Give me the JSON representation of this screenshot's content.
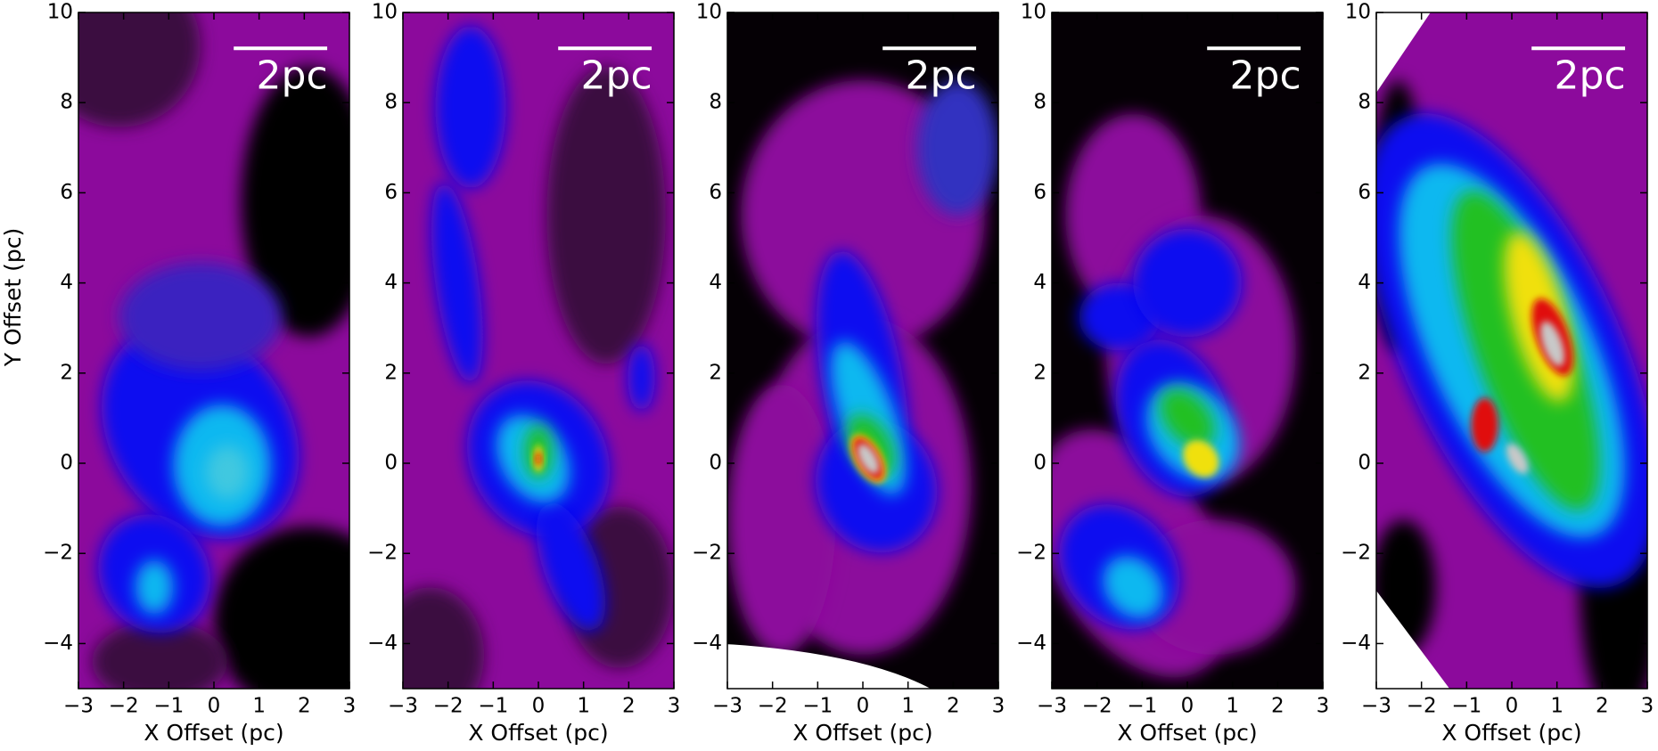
{
  "chart_data": [
    {
      "type": "image",
      "xlabel": "X Offset (pc)",
      "ylabel": "Y Offset (pc)",
      "annotation": "2pc",
      "xlim": [
        -3,
        3
      ],
      "ylim": [
        -5,
        10
      ],
      "xticks": [
        {
          "value": -3,
          "label": "−3"
        },
        {
          "value": -2,
          "label": "−2"
        },
        {
          "value": -1,
          "label": "−1"
        },
        0,
        1,
        2,
        3
      ],
      "yticks": [
        {
          "value": -4,
          "label": "−4"
        },
        {
          "value": -2,
          "label": "−2"
        },
        0,
        2,
        4,
        6,
        8,
        10
      ]
    },
    {
      "type": "image",
      "xlabel": "X Offset (pc)",
      "annotation": "2pc",
      "xlim": [
        -3,
        3
      ],
      "ylim": [
        -5,
        10
      ],
      "xticks": [
        {
          "value": -3,
          "label": "−3"
        },
        {
          "value": -2,
          "label": "−2"
        },
        {
          "value": -1,
          "label": "−1"
        },
        0,
        1,
        2,
        3
      ],
      "yticks": [
        {
          "value": -4,
          "label": "−4"
        },
        {
          "value": -2,
          "label": "−2"
        },
        0,
        2,
        4,
        6,
        8,
        10
      ]
    },
    {
      "type": "image",
      "xlabel": "X Offset (pc)",
      "annotation": "2pc",
      "xlim": [
        -3,
        3
      ],
      "ylim": [
        -5,
        10
      ],
      "xticks": [
        {
          "value": -3,
          "label": "−3"
        },
        {
          "value": -2,
          "label": "−2"
        },
        {
          "value": -1,
          "label": "−1"
        },
        0,
        1,
        2,
        3
      ],
      "yticks": [
        {
          "value": -4,
          "label": "−4"
        },
        {
          "value": -2,
          "label": "−2"
        },
        0,
        2,
        4,
        6,
        8,
        10
      ]
    },
    {
      "type": "image",
      "xlabel": "X Offset (pc)",
      "annotation": "2pc",
      "xlim": [
        -3,
        3
      ],
      "ylim": [
        -5,
        10
      ],
      "xticks": [
        {
          "value": -3,
          "label": "−3"
        },
        {
          "value": -2,
          "label": "−2"
        },
        {
          "value": -1,
          "label": "−1"
        },
        0,
        1,
        2,
        3
      ],
      "yticks": [
        {
          "value": -4,
          "label": "−4"
        },
        {
          "value": -2,
          "label": "−2"
        },
        0,
        2,
        4,
        6,
        8,
        10
      ]
    },
    {
      "type": "image",
      "xlabel": "X Offset (pc)",
      "annotation": "2pc",
      "xlim": [
        -3,
        3
      ],
      "ylim": [
        -5,
        10
      ],
      "xticks": [
        {
          "value": -3,
          "label": "−3"
        },
        {
          "value": -2,
          "label": "−2"
        },
        {
          "value": -1,
          "label": "−1"
        },
        0,
        1,
        2,
        3
      ],
      "yticks": [
        {
          "value": -4,
          "label": "−4"
        },
        {
          "value": -2,
          "label": "−2"
        },
        0,
        2,
        4,
        6,
        8,
        10
      ]
    }
  ]
}
